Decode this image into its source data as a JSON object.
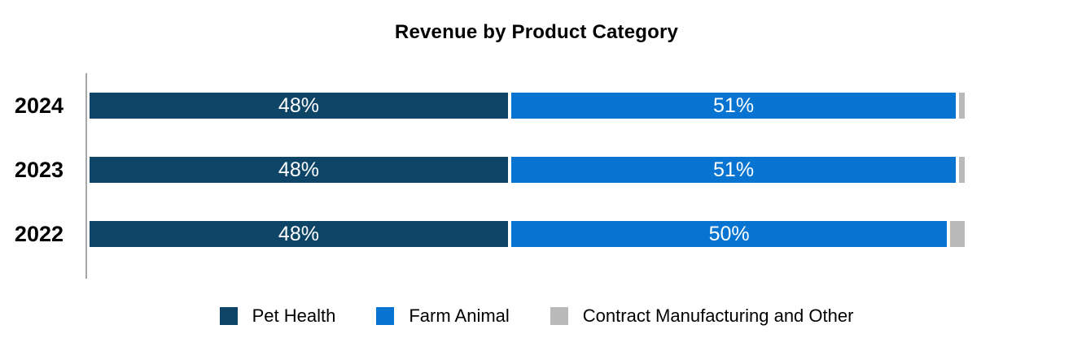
{
  "chart_data": {
    "type": "bar",
    "stacked": true,
    "orientation": "horizontal",
    "title": "Revenue by Product Category",
    "categories": [
      "2024",
      "2023",
      "2022"
    ],
    "series": [
      {
        "name": "Pet Health",
        "color": "#0e4466",
        "values": [
          48,
          48,
          48
        ],
        "labels": [
          "48%",
          "48%",
          "48%"
        ]
      },
      {
        "name": "Farm Animal",
        "color": "#0674d0",
        "values": [
          51,
          51,
          50
        ],
        "labels": [
          "51%",
          "51%",
          "50%"
        ]
      },
      {
        "name": "Contract Manufacturing and Other",
        "color": "#b9b9b9",
        "values": [
          1,
          1,
          2
        ],
        "labels": [
          "",
          "",
          ""
        ]
      }
    ],
    "xlim": [
      0,
      100
    ],
    "unit": "%",
    "grid": false,
    "legend_position": "bottom",
    "value_label_color": "#ffffff",
    "axis_line_color": "#a6a6a6",
    "background_color": "#ffffff"
  }
}
